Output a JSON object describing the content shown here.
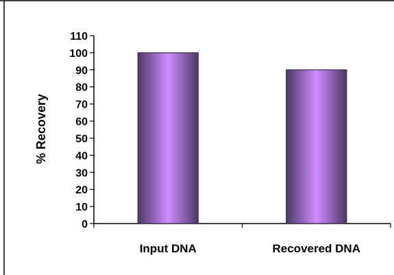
{
  "chart_data": {
    "type": "bar",
    "categories": [
      "Input DNA",
      "Recovered DNA"
    ],
    "values": [
      100,
      90
    ],
    "title": "",
    "xlabel": "",
    "ylabel": "% Recovery",
    "ylim": [
      0,
      110
    ],
    "yticks": [
      0,
      10,
      20,
      30,
      40,
      50,
      60,
      70,
      80,
      90,
      100,
      110
    ],
    "grid": false,
    "legend": "none",
    "bar_colors": {
      "edge": "#3a2a4e",
      "dark": "#4b3a66",
      "light": "#d08cff"
    }
  }
}
